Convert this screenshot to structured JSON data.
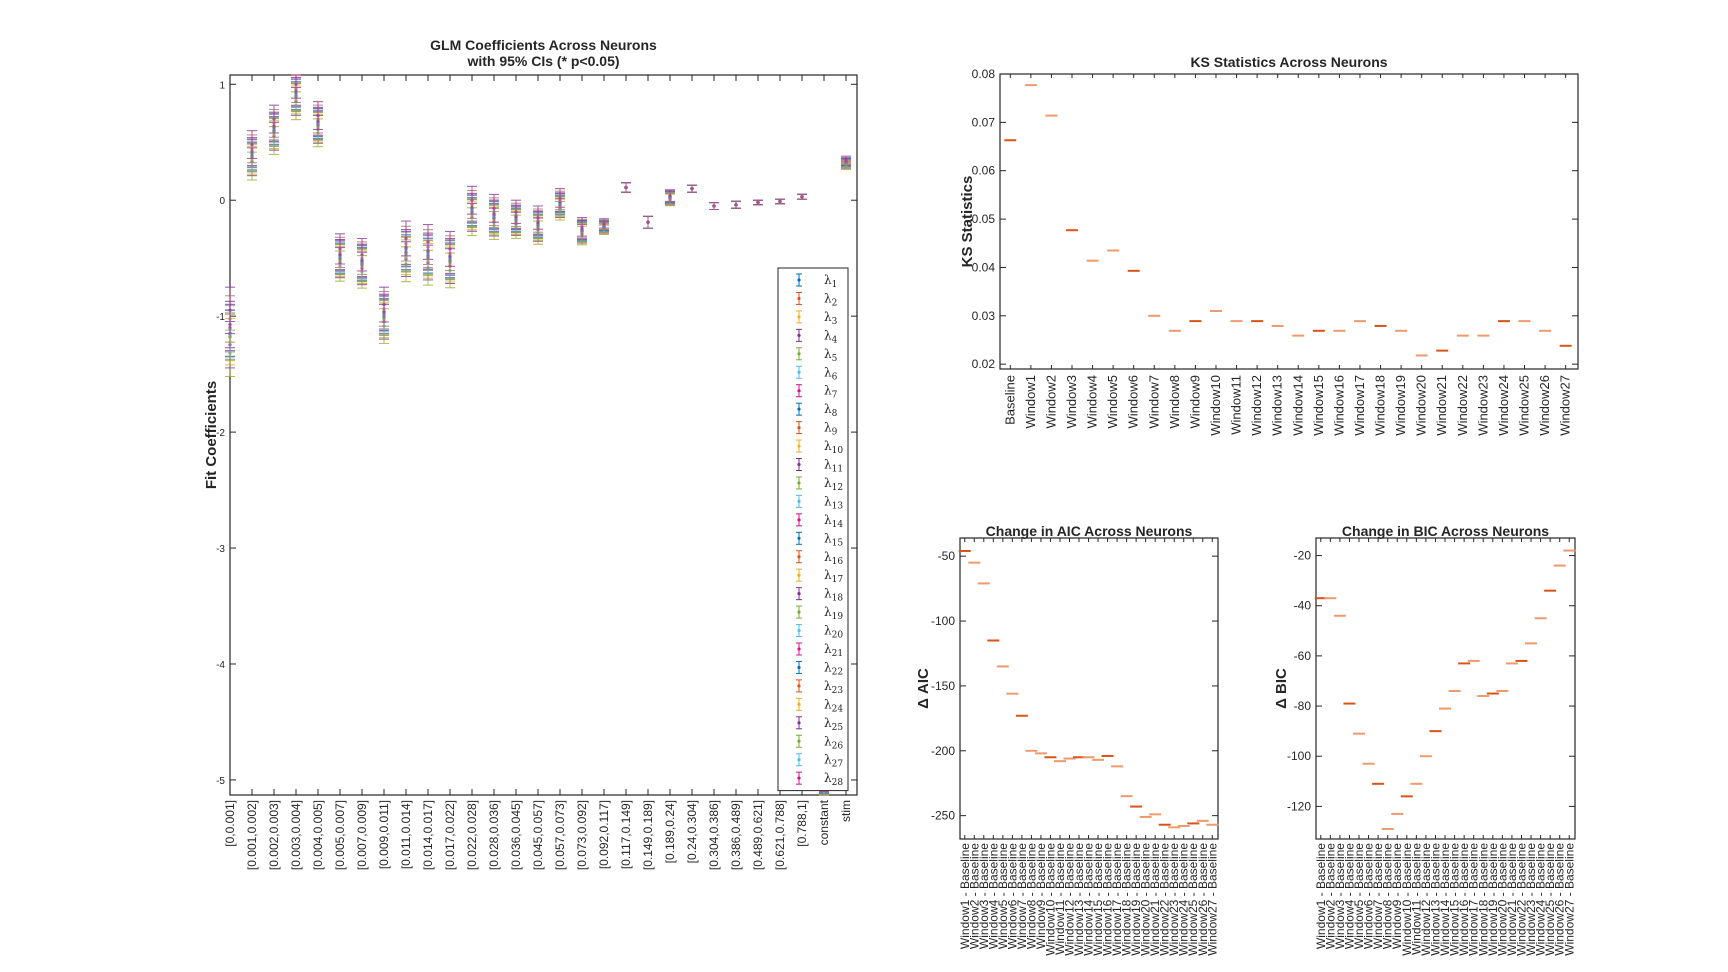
{
  "colors": [
    "#0072BD",
    "#D95319",
    "#EDB120",
    "#7E2F8E",
    "#77AC30",
    "#4DBEEE",
    "#D4148C"
  ],
  "chart_data": [
    {
      "id": "glm",
      "type": "errorbar",
      "title": [
        "GLM Coefficients Across Neurons",
        "with 95% CIs (* p<0.05)"
      ],
      "xlabel": "",
      "ylabel": "Fit Coefficients",
      "ylim": [
        -5.13,
        1.08
      ],
      "yticks": [
        1,
        0,
        -1,
        -2,
        -3,
        -4,
        -5
      ],
      "categories": [
        "[0,0.001]",
        "[0.001,0.002]",
        "[0.002,0.003]",
        "[0.003,0.004]",
        "[0.004,0.005]",
        "[0.005,0.007]",
        "[0.007,0.009]",
        "[0.009,0.011]",
        "[0.011,0.014]",
        "[0.014,0.017]",
        "[0.017,0.022]",
        "[0.022,0.028]",
        "[0.028,0.036]",
        "[0.036,0.045]",
        "[0.045,0.057]",
        "[0.057,0.073]",
        "[0.073,0.092]",
        "[0.092,0.117]",
        "[0.117,0.149]",
        "[0.149,0.189]",
        "[0.189,0.24]",
        "[0.24,0.304]",
        "[0.304,0.386]",
        "[0.386,0.489]",
        "[0.489,0.621]",
        "[0.621,0.788]",
        "[0.788,1]",
        "constant",
        "stim"
      ],
      "estimate_summary": {
        "center": [
          -1.15,
          0.38,
          0.6,
          0.9,
          0.65,
          -0.5,
          -0.55,
          -1.0,
          -0.45,
          -0.48,
          -0.52,
          -0.1,
          -0.15,
          -0.17,
          -0.22,
          -0.04,
          -0.27,
          -0.23,
          0.11,
          -0.19,
          0.02,
          0.1,
          -0.05,
          -0.04,
          -0.02,
          -0.01,
          0.03,
          -5.1,
          0.32
        ],
        "spread": [
          0.2,
          0.1,
          0.1,
          0.1,
          0.08,
          0.08,
          0.08,
          0.1,
          0.12,
          0.12,
          0.1,
          0.1,
          0.08,
          0.07,
          0.07,
          0.06,
          0.04,
          0.03,
          0.0,
          0.0,
          0.02,
          0.0,
          0.0,
          0.0,
          0.0,
          0.0,
          0.0,
          0.02,
          0.03
        ],
        "ci_halfwidth": [
          0.2,
          0.12,
          0.12,
          0.12,
          0.12,
          0.13,
          0.14,
          0.15,
          0.15,
          0.15,
          0.15,
          0.12,
          0.12,
          0.1,
          0.1,
          0.08,
          0.08,
          0.04,
          0.04,
          0.05,
          0.05,
          0.03,
          0.03,
          0.03,
          0.02,
          0.02,
          0.02,
          0.02,
          0.03
        ]
      },
      "legend": {
        "placement": "bottom-right",
        "entries": [
          "λ1",
          "λ2",
          "λ3",
          "λ4",
          "λ5",
          "λ6",
          "λ7",
          "λ8",
          "λ9",
          "λ10",
          "λ11",
          "λ12",
          "λ13",
          "λ14",
          "λ15",
          "λ16",
          "λ17",
          "λ18",
          "λ19",
          "λ20",
          "λ21",
          "λ22",
          "λ23",
          "λ24",
          "λ25",
          "λ26",
          "λ27",
          "λ28"
        ]
      },
      "n_series": 28
    },
    {
      "id": "ks",
      "type": "scatter",
      "title": "KS Statistics Across Neurons",
      "xlabel": "",
      "ylabel": "KS Statistics",
      "ylim": [
        0.019,
        0.08
      ],
      "yticks": [
        0.08,
        0.07,
        0.06,
        0.05,
        0.04,
        0.03,
        0.02
      ],
      "categories": [
        "Baseline",
        "Window1",
        "Window2",
        "Window3",
        "Window4",
        "Window5",
        "Window6",
        "Window7",
        "Window8",
        "Window9",
        "Window10",
        "Window11",
        "Window12",
        "Window13",
        "Window14",
        "Window15",
        "Window16",
        "Window17",
        "Window18",
        "Window19",
        "Window20",
        "Window21",
        "Window22",
        "Window23",
        "Window24",
        "Window25",
        "Window26",
        "Window27"
      ],
      "values": [
        0.0663,
        0.0777,
        0.0714,
        0.0477,
        0.0414,
        0.0435,
        0.0393,
        0.03,
        0.0269,
        0.0289,
        0.031,
        0.0289,
        0.0289,
        0.0279,
        0.0259,
        0.0269,
        0.0269,
        0.0289,
        0.0279,
        0.0269,
        0.0218,
        0.0228,
        0.0259,
        0.0259,
        0.0289,
        0.0289,
        0.0269,
        0.0238
      ]
    },
    {
      "id": "aic",
      "type": "scatter",
      "title": "Change in AIC Across Neurons",
      "xlabel": "",
      "ylabel": "Δ AIC",
      "ylim": [
        -268,
        -36
      ],
      "yticks": [
        -50,
        -100,
        -150,
        -200,
        -250
      ],
      "categories": [
        "Window1 - Baseline",
        "Window2 - Baseline",
        "Window3 - Baseline",
        "Window4 - Baseline",
        "Window5 - Baseline",
        "Window6 - Baseline",
        "Window7 - Baseline",
        "Window8 - Baseline",
        "Window9 - Baseline",
        "Window10 - Baseline",
        "Window11 - Baseline",
        "Window12 - Baseline",
        "Window13 - Baseline",
        "Window14 - Baseline",
        "Window15 - Baseline",
        "Window16 - Baseline",
        "Window17 - Baseline",
        "Window18 - Baseline",
        "Window19 - Baseline",
        "Window20 - Baseline",
        "Window21 - Baseline",
        "Window22 - Baseline",
        "Window23 - Baseline",
        "Window24 - Baseline",
        "Window25 - Baseline",
        "Window26 - Baseline",
        "Window27 - Baseline"
      ],
      "values": [
        -46,
        -55,
        -71,
        -115,
        -135,
        -156,
        -173,
        -200,
        -202,
        -205,
        -208,
        -206,
        -205,
        -205,
        -207,
        -204,
        -212,
        -235,
        -243,
        -251,
        -249,
        -257,
        -259,
        -258,
        -256,
        -254,
        -257
      ]
    },
    {
      "id": "bic",
      "type": "scatter",
      "title": "Change in BIC Across Neurons",
      "xlabel": "",
      "ylabel": "Δ BIC",
      "ylim": [
        -133,
        -13
      ],
      "yticks": [
        -20,
        -40,
        -60,
        -80,
        -100,
        -120
      ],
      "categories": [
        "Window1 - Baseline",
        "Window2 - Baseline",
        "Window3 - Baseline",
        "Window4 - Baseline",
        "Window5 - Baseline",
        "Window6 - Baseline",
        "Window7 - Baseline",
        "Window8 - Baseline",
        "Window9 - Baseline",
        "Window10 - Baseline",
        "Window11 - Baseline",
        "Window12 - Baseline",
        "Window13 - Baseline",
        "Window14 - Baseline",
        "Window15 - Baseline",
        "Window16 - Baseline",
        "Window17 - Baseline",
        "Window18 - Baseline",
        "Window19 - Baseline",
        "Window20 - Baseline",
        "Window21 - Baseline",
        "Window22 - Baseline",
        "Window23 - Baseline",
        "Window24 - Baseline",
        "Window25 - Baseline",
        "Window26 - Baseline",
        "Window27 - Baseline"
      ],
      "values": [
        -37,
        -37,
        -44,
        -79,
        -91,
        -103,
        -111,
        -129,
        -123,
        -116,
        -111,
        -100,
        -90,
        -81,
        -74,
        -63,
        -62,
        -76,
        -75,
        -74,
        -63,
        -62,
        -55,
        -45,
        -34,
        -24,
        -18
      ]
    }
  ]
}
